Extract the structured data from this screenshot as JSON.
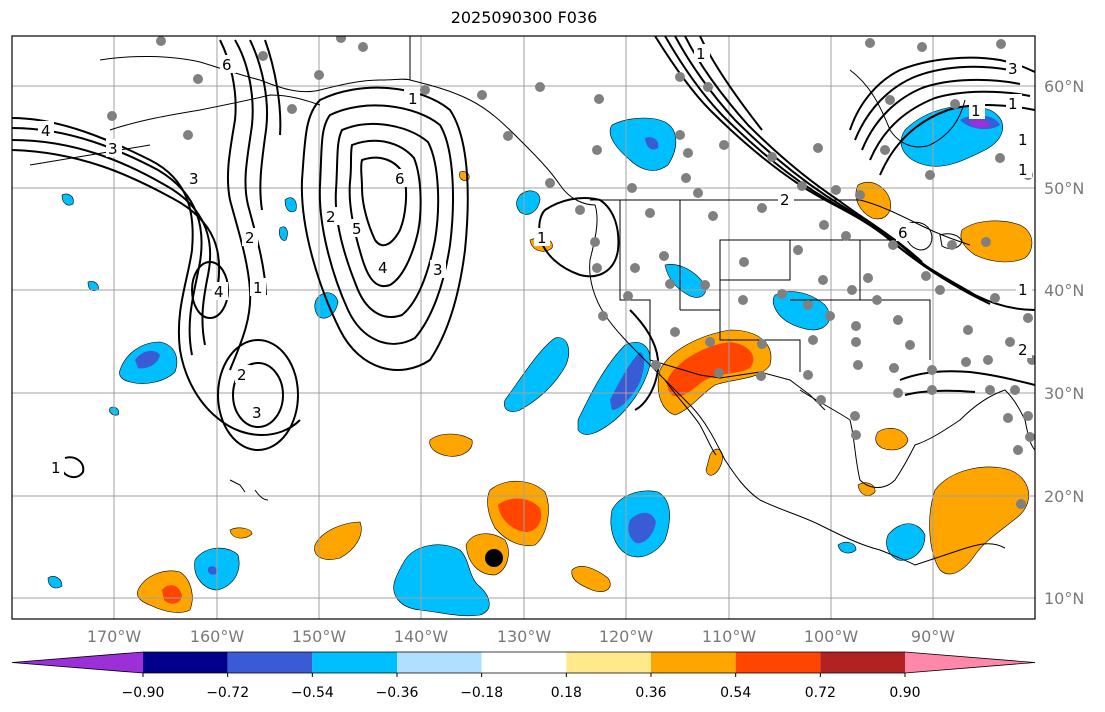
{
  "title": "2025090300 F036",
  "lat_labels": [
    "60°N",
    "50°N",
    "40°N",
    "30°N",
    "20°N",
    "10°N"
  ],
  "lon_labels": [
    "170°W",
    "160°W",
    "150°W",
    "140°W",
    "130°W",
    "120°W",
    "110°W",
    "100°W",
    "90°W"
  ],
  "colorbar": {
    "ticks": [
      "−0.90",
      "−0.72",
      "−0.54",
      "−0.36",
      "−0.18",
      "0.18",
      "0.36",
      "0.54",
      "0.72",
      "0.90"
    ],
    "colors": [
      "#9b30d9",
      "#00008b",
      "#3a5bd6",
      "#00bfff",
      "#b0e0ff",
      "#ffffff",
      "#ffe98a",
      "#ffa500",
      "#ff4500",
      "#b22222",
      "#ff88aa"
    ]
  },
  "contour_labels": [
    "4",
    "3",
    "3",
    "2",
    "1",
    "4",
    "1",
    "2",
    "3",
    "1",
    "6",
    "5",
    "4",
    "3",
    "2",
    "1",
    "1",
    "6",
    "1",
    "3",
    "1",
    "6",
    "2",
    "1",
    "1",
    "1",
    "2"
  ],
  "colors": {
    "grid": "#a0a0a0",
    "coast": "#000000",
    "station": "#808080"
  }
}
